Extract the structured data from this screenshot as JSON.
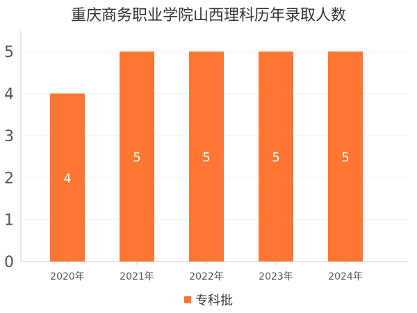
{
  "chart_data": {
    "type": "bar",
    "title": "重庆商务职业学院山西理科历年录取人数",
    "categories": [
      "2020年",
      "2021年",
      "2022年",
      "2023年",
      "2024年"
    ],
    "series": [
      {
        "name": "专科批",
        "values": [
          4,
          5,
          5,
          5,
          5
        ],
        "color": "#FF7733"
      }
    ],
    "yticks": [
      0,
      1,
      2,
      3,
      4,
      5
    ],
    "ylim": [
      0,
      5.5
    ],
    "xlabel": "",
    "ylabel": "",
    "grid": true,
    "legend_position": "bottom",
    "data_labels": true
  }
}
